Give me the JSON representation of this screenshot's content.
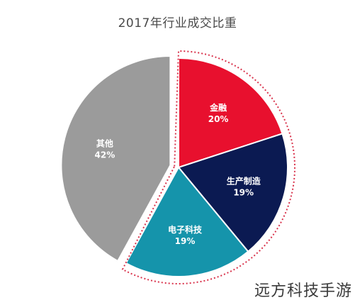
{
  "chart_data": {
    "type": "pie",
    "title": "2017年行业成交比重",
    "slices": [
      {
        "label": "金融",
        "value": 20,
        "value_label": "20%",
        "color": "#e8102e",
        "highlighted": true
      },
      {
        "label": "生产制造",
        "value": 19,
        "value_label": "19%",
        "color": "#0b1a52",
        "highlighted": true
      },
      {
        "label": "电子科技",
        "value": 19,
        "value_label": "19%",
        "color": "#1594ab",
        "highlighted": true
      },
      {
        "label": "其他",
        "value": 42,
        "value_label": "42%",
        "color": "#9b9b9b",
        "highlighted": false
      }
    ],
    "start_angle_deg": 0,
    "direction": "clockwise",
    "highlight_outline_color": "#d9344d"
  },
  "watermark": "远方科技手游"
}
